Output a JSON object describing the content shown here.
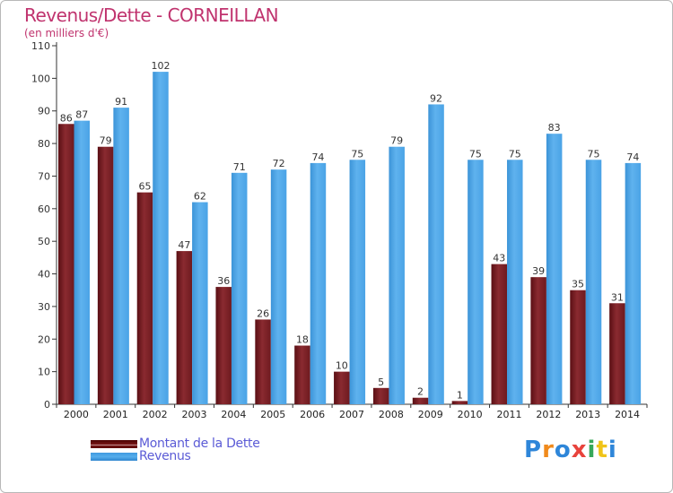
{
  "chart_data": {
    "type": "bar",
    "title": "Revenus/Dette - CORNEILLAN",
    "subtitle": "(en milliers d'€)",
    "categories": [
      "2000",
      "2001",
      "2002",
      "2003",
      "2004",
      "2005",
      "2006",
      "2007",
      "2008",
      "2009",
      "2010",
      "2011",
      "2012",
      "2013",
      "2014"
    ],
    "series": [
      {
        "name": "Montant de la Dette",
        "color": "#7a1f24",
        "values": [
          86,
          79,
          65,
          47,
          36,
          26,
          18,
          10,
          5,
          2,
          1,
          43,
          39,
          35,
          31
        ]
      },
      {
        "name": "Revenus",
        "color": "#4fa6e6",
        "values": [
          87,
          91,
          102,
          62,
          71,
          72,
          74,
          75,
          79,
          92,
          75,
          75,
          83,
          75,
          74
        ]
      }
    ],
    "ylim": [
      0,
      110
    ],
    "yticks": [
      0,
      10,
      20,
      30,
      40,
      50,
      60,
      70,
      80,
      90,
      100,
      110
    ],
    "xlabel": "",
    "ylabel": "",
    "grid": false
  },
  "legend": {
    "debt_label": "Montant de la Dette",
    "revenue_label": "Revenus"
  },
  "brand": {
    "name": "Proxiti",
    "letter_colors": [
      "#2e86d9",
      "#f08a1c",
      "#2e86d9",
      "#e8433c",
      "#37a85a",
      "#f0c419",
      "#2e86d9"
    ]
  }
}
